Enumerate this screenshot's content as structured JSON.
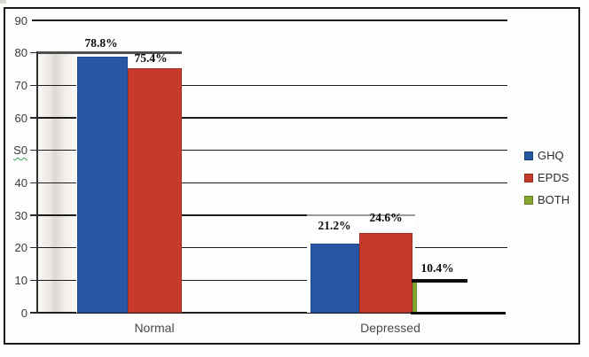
{
  "chart_data": {
    "type": "bar",
    "title": "",
    "categories": [
      "Normal",
      "Depressed"
    ],
    "series": [
      {
        "name": "GHQ",
        "color": "#2856A5",
        "values": [
          78.8,
          21.2
        ],
        "data_labels": [
          "78.8%",
          "21.2%"
        ]
      },
      {
        "name": "EPDS",
        "color": "#C53A2B",
        "values": [
          75.4,
          24.6
        ],
        "data_labels": [
          "75.4%",
          "24.6%"
        ]
      },
      {
        "name": "BOTH",
        "color": "#85A62F",
        "values": [
          null,
          10.4
        ],
        "data_labels": [
          null,
          "10.4%"
        ]
      }
    ],
    "y_axis": {
      "min": 0,
      "max": 90,
      "interval": 10,
      "tick_labels": [
        "90",
        "80",
        "70",
        "60",
        "S0",
        "40",
        "30",
        "20",
        "10",
        "0"
      ]
    },
    "legend": {
      "position": "right",
      "entries": [
        {
          "label": "GHQ",
          "color": "#2856A5"
        },
        {
          "label": "EPDS",
          "color": "#C53A2B"
        },
        {
          "label": "BOTH",
          "color": "#85A62F"
        }
      ]
    },
    "grid": true
  }
}
